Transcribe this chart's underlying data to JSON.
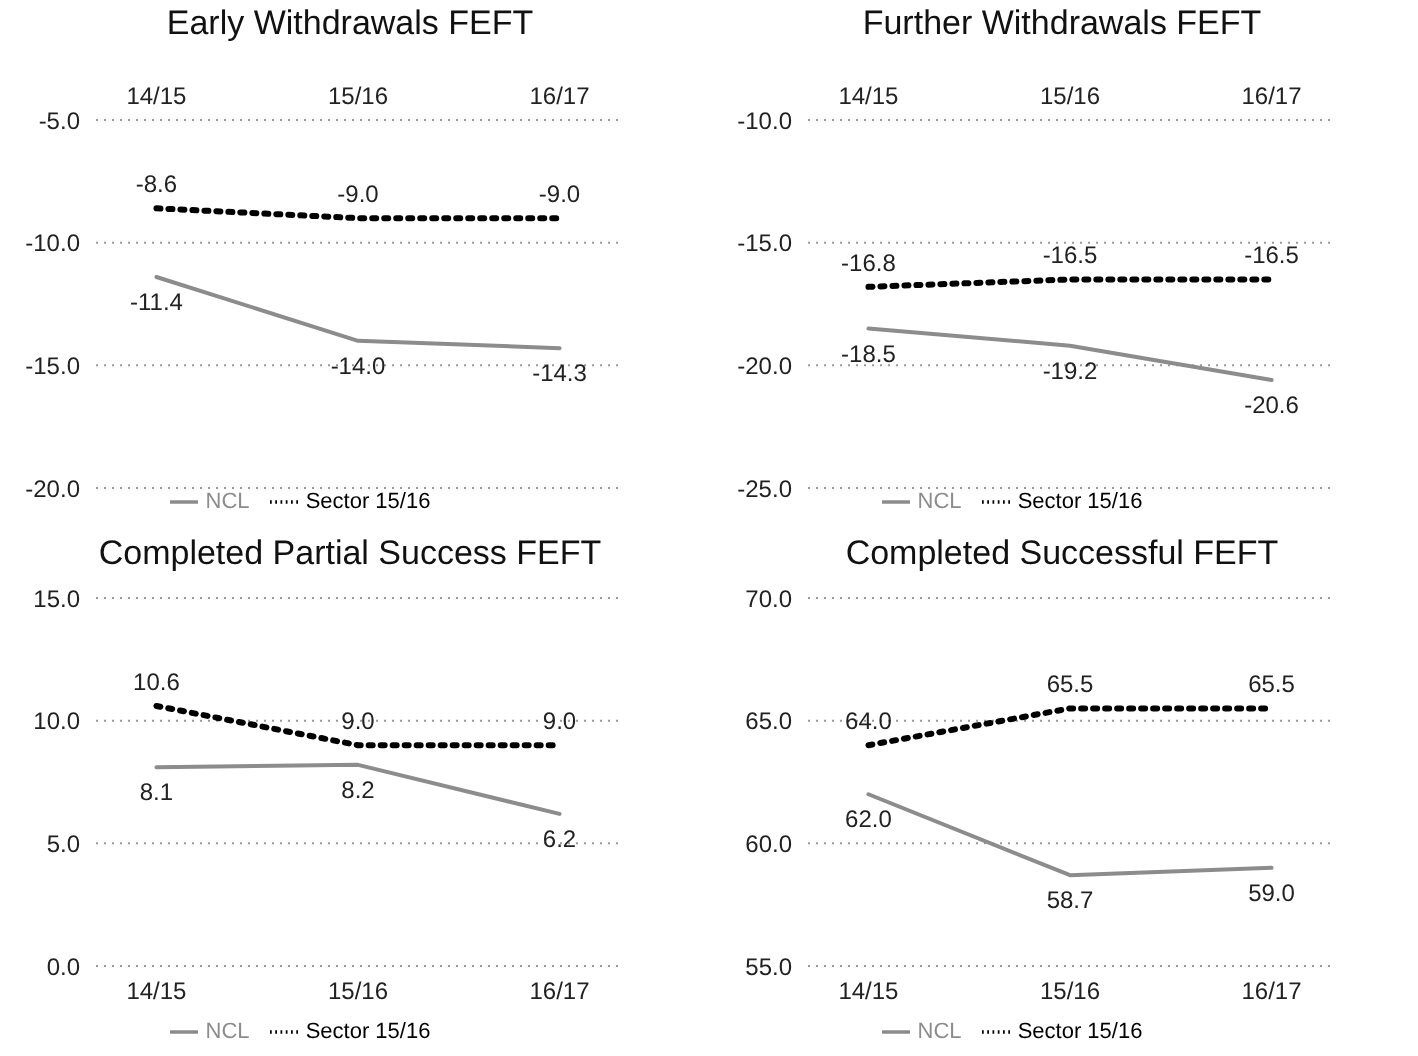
{
  "chart_data": [
    {
      "type": "line",
      "title": "Early Withdrawals FEFT",
      "categories": [
        "14/15",
        "15/16",
        "16/17"
      ],
      "ylim": [
        -20,
        -5
      ],
      "yticks": [
        {
          "value": -20,
          "label": "-20.0"
        },
        {
          "value": -15,
          "label": "-15.0"
        },
        {
          "value": -10,
          "label": "-10.0"
        },
        {
          "value": -5,
          "label": "-5.0"
        }
      ],
      "grid": "y",
      "legend": "bottom",
      "marker": "none",
      "series": [
        {
          "name": "NCL",
          "color": "#8c8c8c",
          "line_style": "solid",
          "values": [
            -11.4,
            -14.0,
            -14.3
          ],
          "value_labels": [
            "-11.4",
            "-14.0",
            "-14.3"
          ]
        },
        {
          "name": "Sector 15/16",
          "color": "#000000",
          "line_style": "dotted",
          "values": [
            -8.6,
            -9.0,
            -9.0
          ],
          "value_labels": [
            "-8.6",
            "-9.0",
            "-9.0"
          ]
        }
      ]
    },
    {
      "type": "line",
      "title": "Further Withdrawals FEFT",
      "categories": [
        "14/15",
        "15/16",
        "16/17"
      ],
      "ylim": [
        -25,
        -10
      ],
      "yticks": [
        {
          "value": -25,
          "label": "-25.0"
        },
        {
          "value": -20,
          "label": "-20.0"
        },
        {
          "value": -15,
          "label": "-15.0"
        },
        {
          "value": -10,
          "label": "-10.0"
        }
      ],
      "grid": "y",
      "legend": "bottom",
      "marker": "none",
      "series": [
        {
          "name": "NCL",
          "color": "#8c8c8c",
          "line_style": "solid",
          "values": [
            -18.5,
            -19.2,
            -20.6
          ],
          "value_labels": [
            "-18.5",
            "-19.2",
            "-20.6"
          ]
        },
        {
          "name": "Sector 15/16",
          "color": "#000000",
          "line_style": "dotted",
          "values": [
            -16.8,
            -16.5,
            -16.5
          ],
          "value_labels": [
            "-16.8",
            "-16.5",
            "-16.5"
          ]
        }
      ]
    },
    {
      "type": "line",
      "title": "Completed Partial Success FEFT",
      "categories": [
        "14/15",
        "15/16",
        "16/17"
      ],
      "ylim": [
        0,
        15
      ],
      "yticks": [
        {
          "value": 0,
          "label": "0.0"
        },
        {
          "value": 5,
          "label": "5.0"
        },
        {
          "value": 10,
          "label": "10.0"
        },
        {
          "value": 15,
          "label": "15.0"
        }
      ],
      "grid": "y",
      "legend": "bottom",
      "marker": "none",
      "series": [
        {
          "name": "NCL",
          "color": "#8c8c8c",
          "line_style": "solid",
          "values": [
            8.1,
            8.2,
            6.2
          ],
          "value_labels": [
            "8.1",
            "8.2",
            "6.2"
          ]
        },
        {
          "name": "Sector 15/16",
          "color": "#000000",
          "line_style": "dotted",
          "values": [
            10.6,
            9.0,
            9.0
          ],
          "value_labels": [
            "10.6",
            "9.0",
            "9.0"
          ]
        }
      ]
    },
    {
      "type": "line",
      "title": "Completed Successful FEFT",
      "categories": [
        "14/15",
        "15/16",
        "16/17"
      ],
      "ylim": [
        55,
        70
      ],
      "yticks": [
        {
          "value": 55,
          "label": "55.0"
        },
        {
          "value": 60,
          "label": "60.0"
        },
        {
          "value": 65,
          "label": "65.0"
        },
        {
          "value": 70,
          "label": "70.0"
        }
      ],
      "grid": "y",
      "legend": "bottom",
      "marker": "none",
      "series": [
        {
          "name": "NCL",
          "color": "#8c8c8c",
          "line_style": "solid",
          "values": [
            62.0,
            58.7,
            59.0
          ],
          "value_labels": [
            "62.0",
            "58.7",
            "59.0"
          ]
        },
        {
          "name": "Sector 15/16",
          "color": "#000000",
          "line_style": "dotted",
          "values": [
            64.0,
            65.5,
            65.5
          ],
          "value_labels": [
            "64.0",
            "65.5",
            "65.5"
          ]
        }
      ]
    }
  ]
}
